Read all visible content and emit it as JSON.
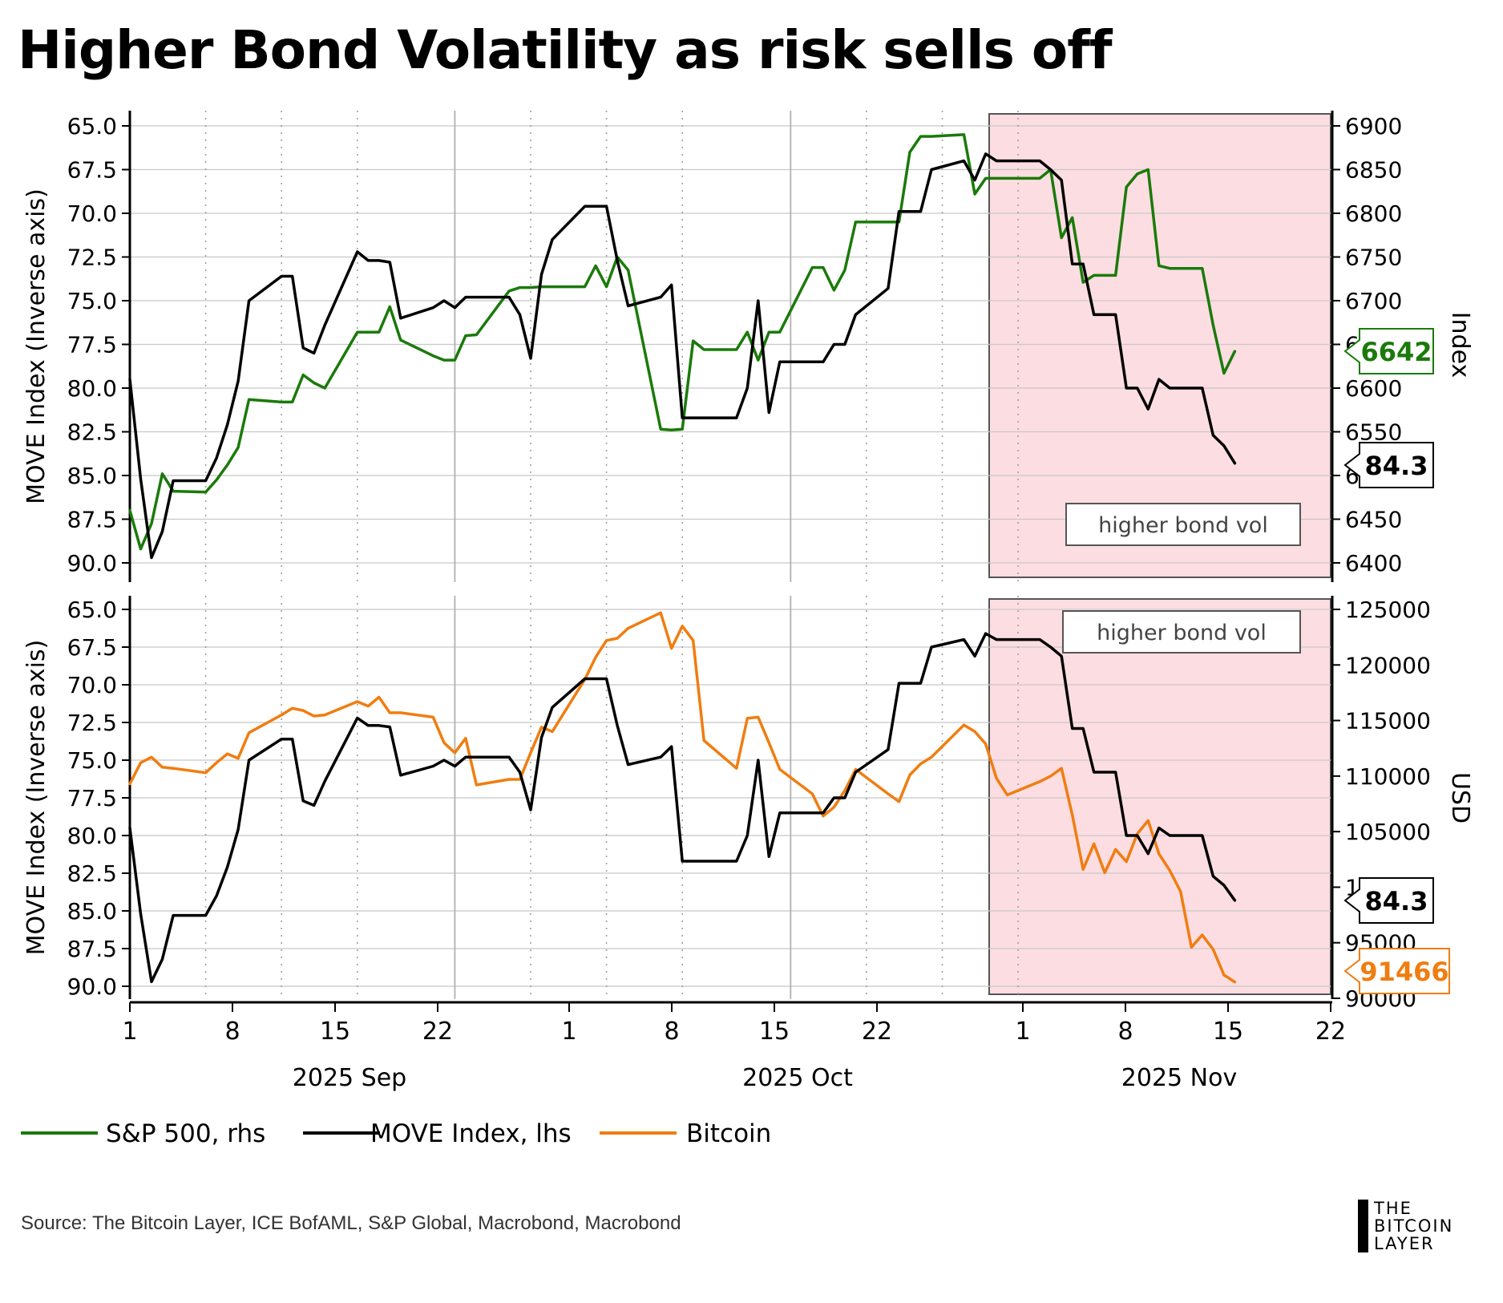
{
  "title": "Higher Bond Volatility as risk sells off",
  "source": "Source: The Bitcoin Layer, ICE BofAML, S&P Global, Macrobond, Macrobond",
  "logo": {
    "line1": "THE",
    "line2": "BITCOIN",
    "line3": "LAYER"
  },
  "colors": {
    "sp500": "#1a7a0a",
    "move": "#000000",
    "bitcoin": "#f07d10",
    "shade": "#fcdde2",
    "grid": "#c8c8c8"
  },
  "chart_data": {
    "type": "line",
    "x_axis": {
      "ticks": [
        "1",
        "8",
        "15",
        "22",
        "1",
        "8",
        "15",
        "22",
        "1",
        "8",
        "15",
        "22"
      ],
      "months": [
        "2025 Sep",
        "2025 Oct",
        "2025 Nov"
      ]
    },
    "legend": [
      "S&P 500, rhs",
      "MOVE Index, lhs",
      "Bitcoin"
    ],
    "annotation": "higher bond vol",
    "move_index": {
      "name": "MOVE Index, lhs",
      "x": [
        1,
        2,
        3,
        4,
        5,
        8,
        9,
        10,
        11,
        12,
        15,
        16,
        17,
        18,
        19,
        22,
        23,
        24,
        25,
        26,
        29,
        30,
        31,
        32,
        33,
        36,
        37,
        38,
        39,
        40,
        43,
        44,
        45,
        46,
        47,
        50,
        51,
        52,
        53,
        54,
        57,
        58,
        59,
        60,
        61,
        64,
        65,
        66,
        67,
        68,
        71,
        72,
        73,
        74,
        75,
        78,
        79,
        80,
        81,
        82,
        85,
        86,
        87,
        88,
        89
      ],
      "values": [
        79.5,
        85.2,
        89.7,
        88.2,
        85.3,
        85.3,
        84.0,
        82.1,
        79.6,
        75.0,
        73.6,
        73.6,
        77.7,
        78.0,
        76.4,
        72.2,
        72.7,
        72.7,
        72.8,
        76.0,
        75.4,
        75.0,
        75.4,
        74.8,
        74.8,
        74.8,
        75.8,
        78.3,
        73.5,
        71.5,
        69.6,
        69.6,
        69.6,
        72.7,
        75.3,
        74.8,
        74.1,
        81.7,
        81.7,
        81.7,
        81.7,
        80.0,
        75.0,
        81.4,
        78.5,
        78.5,
        78.5,
        77.5,
        77.5,
        75.8,
        74.3,
        69.9,
        69.9,
        69.9,
        67.5,
        67.0,
        68.1,
        66.6,
        67.0,
        67.0,
        67.0,
        67.5,
        68.1,
        72.9,
        72.9
      ],
      "ylabel": "MOVE Index (Inverse axis)",
      "ylim": [
        65,
        90
      ],
      "ticks": [
        "65.0",
        "67.5",
        "70.0",
        "72.5",
        "75.0",
        "77.5",
        "80.0",
        "82.5",
        "85.0",
        "87.5",
        "90.0"
      ],
      "last_value": "84.3"
    },
    "sp500": {
      "name": "S&P 500, rhs",
      "x": [
        1,
        2,
        3,
        4,
        5,
        8,
        9,
        10,
        11,
        12,
        15,
        16,
        17,
        18,
        19,
        22,
        23,
        24,
        25,
        26,
        29,
        30,
        31,
        32,
        33,
        36,
        37,
        38,
        39,
        40,
        43,
        44,
        45,
        46,
        47,
        50,
        51,
        52,
        53,
        54,
        57,
        58,
        59,
        60,
        61,
        64,
        65,
        66,
        67,
        68,
        71,
        72,
        73,
        74,
        75,
        78,
        79,
        80,
        81,
        82,
        85,
        86,
        87,
        88,
        89
      ],
      "values": [
        6460,
        6416,
        6445,
        6502,
        6482,
        6481,
        6495,
        6512,
        6532,
        6587,
        6584,
        6584,
        6615,
        6606,
        6600,
        6664,
        6664,
        6664,
        6693,
        6655,
        6637,
        6632,
        6632,
        6660,
        6661,
        6711,
        6715,
        6715,
        6716,
        6716,
        6716,
        6740,
        6716,
        6750,
        6735,
        6553,
        6552,
        6553,
        6654,
        6644,
        6644,
        6664,
        6632,
        6664,
        6664,
        6738,
        6738,
        6712,
        6735,
        6790,
        6790,
        6790,
        6870,
        6888,
        6888,
        6890,
        6822,
        6840,
        6840,
        6840,
        6840,
        6850,
        6772,
        6795,
        6721
      ]
    },
    "move_recent": {
      "x": [
        90,
        91,
        92,
        93,
        94,
        95,
        96,
        97,
        98,
        99
      ],
      "values": [
        75.8,
        75.8,
        75.8,
        80.0,
        80.0,
        81.2,
        79.5,
        80.0,
        80.0,
        80.0
      ]
    },
    "sp_recent": {
      "x": [
        90,
        91,
        92,
        93,
        94,
        95,
        96,
        97,
        98,
        99
      ],
      "values": [
        6729,
        6729,
        6729,
        6830,
        6845,
        6850,
        6740,
        6737,
        6737,
        6737
      ]
    },
    "move_tail": {
      "x": [
        100,
        101,
        102,
        103
      ],
      "values": [
        80.0,
        82.7,
        83.3,
        84.3
      ]
    },
    "sp_tail": {
      "x": [
        100,
        101,
        102,
        103
      ],
      "values": [
        6737,
        6672,
        6617,
        6642
      ]
    },
    "top_panel": {
      "rhs_label": "Index",
      "rhs_ylim": [
        6400,
        6900
      ],
      "rhs_ticks": [
        "6400",
        "6450",
        "6500",
        "6550",
        "6600",
        "6650",
        "6700",
        "6750",
        "6800",
        "6850",
        "6900"
      ],
      "sp500_last_value": "6642"
    },
    "bitcoin": {
      "name": "Bitcoin",
      "x": [
        1,
        2,
        3,
        4,
        5,
        8,
        9,
        10,
        11,
        12,
        15,
        16,
        17,
        18,
        19,
        22,
        23,
        24,
        25,
        26,
        29,
        30,
        31,
        32,
        33,
        36,
        37,
        38,
        39,
        40,
        43,
        44,
        45,
        46,
        47,
        50,
        51,
        52,
        53,
        54,
        57,
        58,
        59,
        60,
        61,
        64,
        65,
        66,
        67,
        68,
        71,
        72,
        73,
        74,
        75,
        78,
        79,
        80,
        81,
        82,
        85,
        86,
        87,
        88,
        89,
        90,
        91,
        92,
        93,
        94,
        95,
        96,
        97,
        98,
        99,
        100,
        101,
        102,
        103
      ],
      "values": [
        109300,
        111200,
        111700,
        110800,
        110700,
        110300,
        111200,
        112000,
        111600,
        113900,
        115500,
        116100,
        115900,
        115400,
        115500,
        116700,
        116300,
        117100,
        115700,
        115700,
        115300,
        113000,
        112100,
        113400,
        109200,
        109700,
        109700,
        112100,
        114400,
        114000,
        118700,
        120700,
        122200,
        122400,
        123300,
        124700,
        121500,
        123500,
        122200,
        113200,
        110700,
        115200,
        115300,
        113000,
        110600,
        108400,
        106400,
        107200,
        108700,
        110600,
        108400,
        107700,
        110100,
        111100,
        111700,
        114600,
        114000,
        112900,
        109800,
        108300,
        109500,
        110000,
        110700,
        106500,
        101600,
        103900,
        101300,
        103400,
        102300,
        104800,
        106000,
        103000,
        101500,
        99600,
        94600,
        95700,
        94400,
        92100,
        91466
      ],
      "rhs_label": "USD",
      "rhs_ylim": [
        90000,
        125000
      ],
      "rhs_ticks": [
        "90000",
        "95000",
        "100000",
        "105000",
        "110000",
        "115000",
        "120000",
        "125000"
      ],
      "last_value": "91466"
    }
  }
}
